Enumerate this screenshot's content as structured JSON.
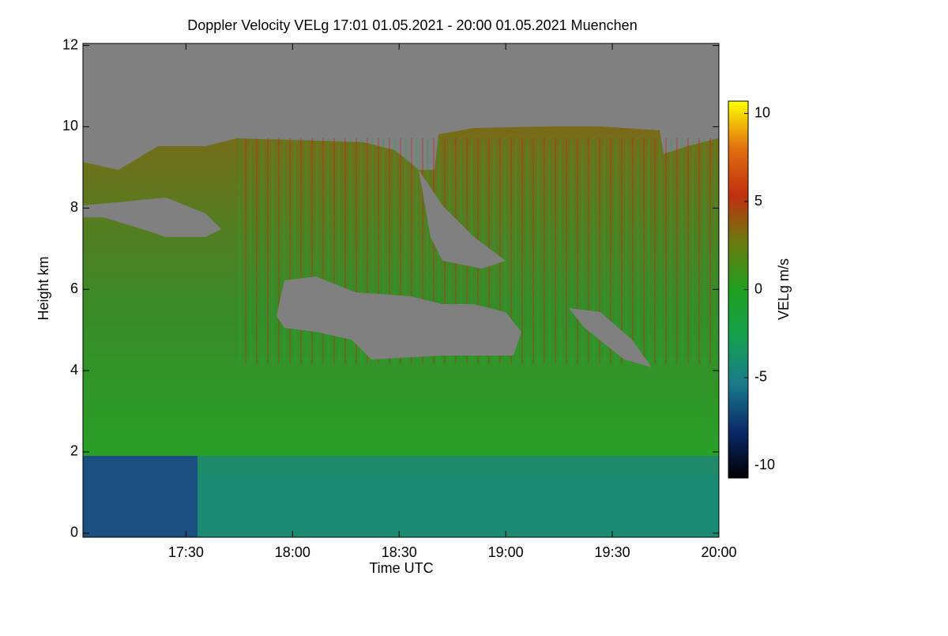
{
  "chart_data": {
    "type": "heatmap",
    "title": "Doppler Velocity VELg   17:01 01.05.2021 - 20:00 01.05.2021 Muenchen",
    "xlabel": "Time UTC",
    "ylabel": "Height km",
    "colorbar_label": "VELg m/s",
    "xlim": [
      1021,
      1200
    ],
    "xticks": [
      {
        "value": 1050,
        "label": "17:30"
      },
      {
        "value": 1080,
        "label": "18:00"
      },
      {
        "value": 1110,
        "label": "18:30"
      },
      {
        "value": 1140,
        "label": "19:00"
      },
      {
        "value": 1170,
        "label": "19:30"
      },
      {
        "value": 1200,
        "label": "20:00"
      }
    ],
    "ylim": [
      -0.1,
      12.05
    ],
    "yticks": [
      0,
      2,
      4,
      6,
      8,
      10,
      12
    ],
    "zlim": [
      -10.7,
      10.7
    ],
    "zticks": [
      -10,
      -5,
      0,
      5,
      10
    ],
    "colormap": [
      "#000000",
      "#0a2a6a",
      "#1a7a8a",
      "#15a050",
      "#20a020",
      "#6a7a10",
      "#c03010",
      "#e07010",
      "#ffff00"
    ]
  }
}
